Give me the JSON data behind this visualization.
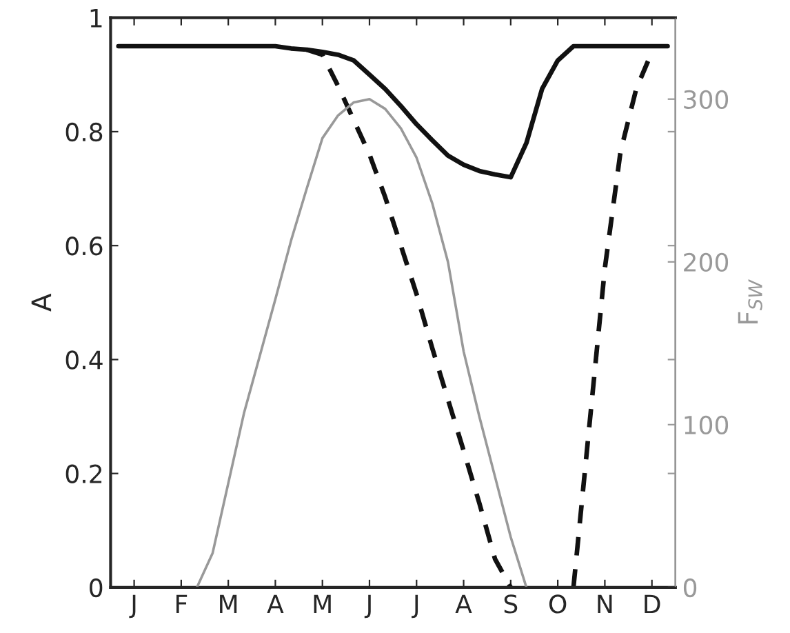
{
  "chart_data": {
    "type": "line",
    "ylabel": "A",
    "y2label": "F$_{SW}$",
    "categories": [
      null,
      "J",
      null,
      null,
      "F",
      null,
      null,
      "M",
      null,
      null,
      "A",
      null,
      null,
      "M",
      null,
      null,
      "J",
      null,
      null,
      "J",
      null,
      null,
      "A",
      null,
      null,
      "S",
      null,
      null,
      "O",
      null,
      null,
      "N",
      null,
      null,
      "D",
      null
    ],
    "ylim": [
      0,
      1
    ],
    "yticks": [
      0,
      0.2,
      0.4,
      0.6,
      0.8,
      1
    ],
    "y2lim": [
      0,
      350
    ],
    "y2ticks": [
      0,
      {
        "value": 70,
        "label": null
      },
      100,
      {
        "value": 140,
        "label": null
      },
      200,
      {
        "value": 210,
        "label": null
      },
      {
        "value": 280,
        "label": null
      },
      300
    ],
    "grid": false,
    "legend": false,
    "marker": "none",
    "series": [
      {
        "color": "#111111",
        "line_style": "solid",
        "values": [
          0.95,
          0.95,
          0.95,
          0.95,
          0.95,
          0.95,
          0.95,
          0.95,
          0.95,
          0.95,
          0.95,
          0.946,
          0.944,
          0.94,
          0.935,
          0.925,
          0.9,
          0.875,
          0.845,
          0.813,
          0.785,
          0.758,
          0.742,
          0.731,
          0.725,
          0.72,
          0.78,
          0.875,
          0.925,
          0.95,
          0.95,
          0.95,
          0.95,
          0.95,
          0.95,
          0.95
        ]
      },
      {
        "color": "#111111",
        "line_style": "dashed",
        "values": [
          null,
          null,
          null,
          null,
          null,
          null,
          null,
          null,
          null,
          null,
          null,
          null,
          0.944,
          0.935,
          0.88,
          0.82,
          0.76,
          0.685,
          0.6,
          0.515,
          0.42,
          0.33,
          0.24,
          0.148,
          0.05,
          0,
          null,
          null,
          null,
          0,
          0.28,
          0.56,
          0.765,
          0.875,
          0.94,
          null
        ]
      },
      {
        "color": "#999999",
        "line_style": "solid",
        "axis": "y2",
        "values": [
          null,
          null,
          null,
          null,
          null,
          0,
          21,
          64,
          107,
          142,
          177,
          213,
          245,
          276,
          290,
          298,
          300,
          294,
          282,
          264,
          236,
          200,
          145,
          105,
          68,
          31,
          0,
          null,
          null,
          null,
          null,
          null,
          null,
          null,
          null,
          null
        ]
      }
    ]
  }
}
